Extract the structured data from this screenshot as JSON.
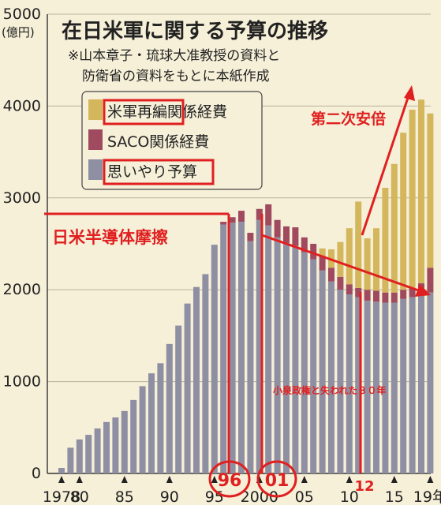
{
  "chart_data": {
    "type": "bar",
    "stacked": true,
    "title": "在日米軍に関する予算の推移",
    "subtitle_lines": [
      "※山本章子・琉球大准教授の資料と",
      "防衛省の資料をもとに本紙作成"
    ],
    "ylabel": "(億円)",
    "ylim": [
      0,
      5000
    ],
    "y_ticks": [
      0,
      1000,
      2000,
      3000,
      4000,
      5000
    ],
    "x_tick_labels": [
      {
        "year": 1978,
        "label": "1978"
      },
      {
        "year": 1980,
        "label": "80"
      },
      {
        "year": 1985,
        "label": "85"
      },
      {
        "year": 1990,
        "label": "90"
      },
      {
        "year": 1995,
        "label": "95"
      },
      {
        "year": 2000,
        "label": "2000"
      },
      {
        "year": 2005,
        "label": "05"
      },
      {
        "year": 2010,
        "label": "10"
      },
      {
        "year": 2015,
        "label": "15"
      },
      {
        "year": 2019,
        "label": "19年"
      }
    ],
    "years": [
      1978,
      1979,
      1980,
      1981,
      1982,
      1983,
      1984,
      1985,
      1986,
      1987,
      1988,
      1989,
      1990,
      1991,
      1992,
      1993,
      1994,
      1995,
      1996,
      1997,
      1998,
      1999,
      2000,
      2001,
      2002,
      2003,
      2004,
      2005,
      2006,
      2007,
      2008,
      2009,
      2010,
      2011,
      2012,
      2013,
      2014,
      2015,
      2016,
      2017,
      2018,
      2019
    ],
    "series": [
      {
        "name": "思いやり予算",
        "color": "#8f8fa3",
        "values": [
          60,
          280,
          370,
          420,
          490,
          560,
          610,
          680,
          800,
          950,
          1090,
          1200,
          1410,
          1610,
          1850,
          2030,
          2170,
          2490,
          2710,
          2730,
          2740,
          2530,
          2760,
          2700,
          2570,
          2510,
          2480,
          2410,
          2330,
          2210,
          2090,
          2000,
          1950,
          1920,
          1880,
          1870,
          1860,
          1860,
          1900,
          1920,
          1940,
          1970
        ]
      },
      {
        "name": "SACO関係経費",
        "color": "#a04a60",
        "values": [
          0,
          0,
          0,
          0,
          0,
          0,
          0,
          0,
          0,
          0,
          0,
          0,
          0,
          0,
          0,
          0,
          0,
          0,
          30,
          60,
          120,
          90,
          120,
          230,
          190,
          180,
          200,
          160,
          170,
          160,
          150,
          140,
          110,
          100,
          120,
          120,
          110,
          110,
          100,
          100,
          130,
          270
        ]
      },
      {
        "name": "米軍再編関係経費",
        "color": "#d4b65c",
        "values": [
          0,
          0,
          0,
          0,
          0,
          0,
          0,
          0,
          0,
          0,
          0,
          0,
          0,
          0,
          0,
          0,
          0,
          0,
          0,
          0,
          0,
          0,
          0,
          0,
          0,
          0,
          0,
          0,
          0,
          80,
          200,
          380,
          610,
          940,
          560,
          680,
          1140,
          1400,
          1710,
          1940,
          2000,
          1680
        ]
      }
    ],
    "annotations": {
      "red_line_top": "日米半導体摩擦",
      "red_arrow_up": "第二次安倍",
      "red_arrow_down": "小泉政権と失われた３０年",
      "circle_96": "96",
      "circle_01": "01",
      "label_12": "12"
    }
  }
}
